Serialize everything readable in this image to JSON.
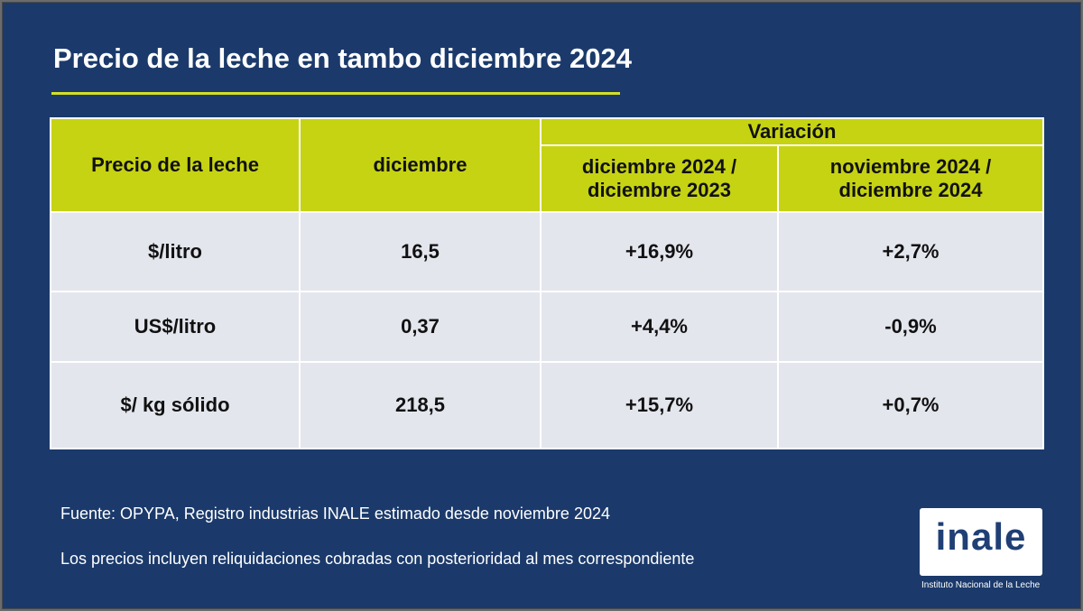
{
  "title": "Precio de la leche en tambo diciembre 2024",
  "colors": {
    "background": "#1b3a6b",
    "header": "#c6d313",
    "row": "#e4e6ee",
    "accent_line": "#d6df23"
  },
  "table": {
    "header": {
      "col1": "Precio de la leche",
      "col2": "diciembre",
      "group": "Variación",
      "col3": "diciembre 2024 / diciembre 2023",
      "col4": "noviembre 2024 / diciembre 2024"
    },
    "rows": [
      {
        "label": "$/litro",
        "value": "16,5",
        "var_year": "+16,9%",
        "var_month": "+2,7%"
      },
      {
        "label": "US$/litro",
        "value": "0,37",
        "var_year": "+4,4%",
        "var_month": "-0,9%"
      },
      {
        "label": "$/ kg sólido",
        "value": "218,5",
        "var_year": "+15,7%",
        "var_month": "+0,7%"
      }
    ]
  },
  "footer": {
    "source": "Fuente: OPYPA, Registro industrias INALE estimado desde noviembre 2024",
    "note": "Los precios incluyen reliquidaciones cobradas con posterioridad al mes correspondiente"
  },
  "logo": {
    "word": "inale",
    "subtitle": "Instituto Nacional de la Leche"
  }
}
